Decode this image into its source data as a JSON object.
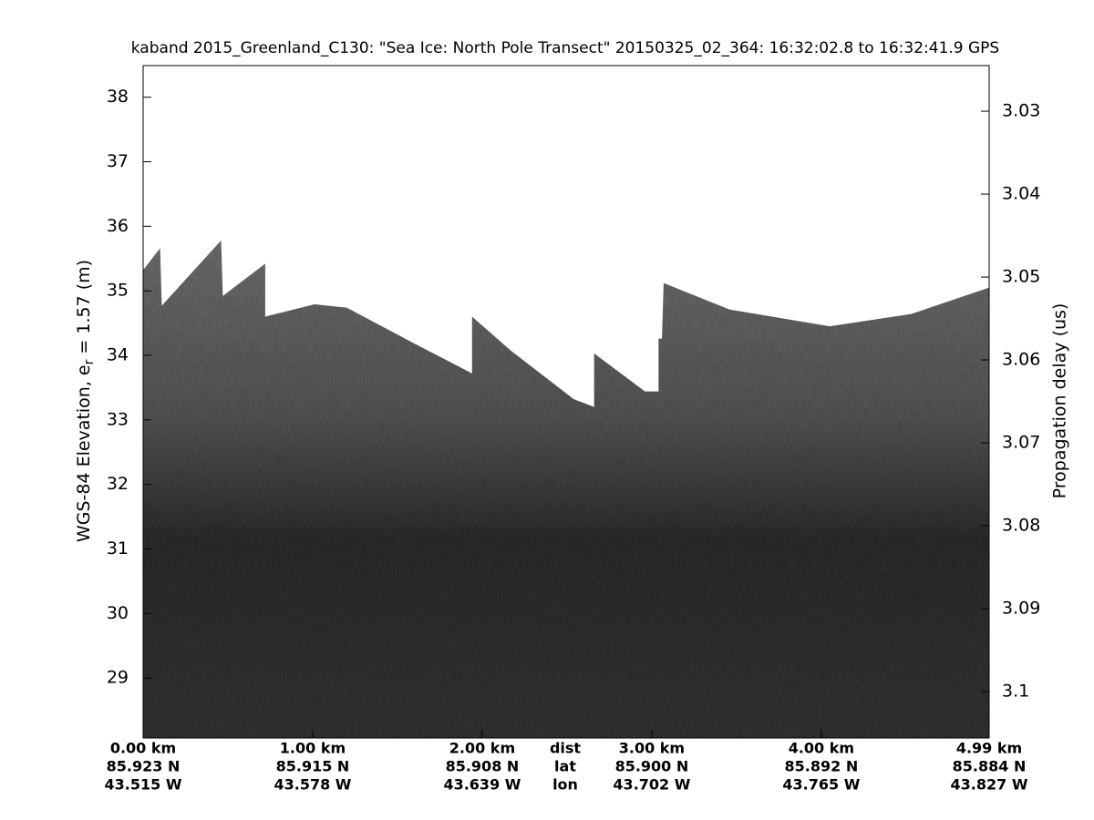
{
  "chart_data": {
    "type": "echogram",
    "title": "kaband 2015_Greenland_C130: \"Sea Ice: North Pole Transect\"  20150325_02_364: 16:32:02.8 to 16:32:41.9 GPS",
    "ylabel": {
      "before": "WGS-84 Elevation, e",
      "sub": "r",
      "after": " = 1.57 (m)"
    },
    "y2label": "Propagation delay (us)",
    "xlim": [
      0,
      4.99
    ],
    "ylim": [
      28.07,
      38.49
    ],
    "y2lim": [
      3.1056,
      3.0245
    ],
    "yticks": [
      29,
      30,
      31,
      32,
      33,
      34,
      35,
      36,
      37,
      38
    ],
    "y2ticks": [
      3.03,
      3.04,
      3.05,
      3.06,
      3.07,
      3.08,
      3.09,
      3.1
    ],
    "xrow_names": [
      "dist",
      "lat",
      "lon"
    ],
    "xticks": [
      {
        "value": 0,
        "label": "0.00 km"
      },
      {
        "value": 1,
        "label": "1.00 km"
      },
      {
        "value": 2,
        "label": "2.00 km"
      },
      {
        "value": 3,
        "label": "3.00 km"
      },
      {
        "value": 4,
        "label": "4.00 km"
      },
      {
        "value": 4.99,
        "label": "4.99 km"
      }
    ],
    "lat_labels": [
      "85.923 N",
      "85.915 N",
      "85.908 N",
      "85.900 N",
      "85.892 N",
      "85.884 N"
    ],
    "lon_labels": [
      "43.515 W",
      "43.578 W",
      "43.639 W",
      "43.702 W",
      "43.765 W",
      "43.827 W"
    ],
    "surface": {
      "x": [
        0,
        0.1,
        0.11,
        0.46,
        0.47,
        0.72,
        0.72,
        1.01,
        1.2,
        1.58,
        1.94,
        1.94,
        2.17,
        2.54,
        2.66,
        2.66,
        2.96,
        3.04,
        3.04,
        3.06,
        3.07,
        3.46,
        4.05,
        4.53,
        4.99
      ],
      "values": [
        35.32,
        35.66,
        34.77,
        35.78,
        34.92,
        35.42,
        34.6,
        34.79,
        34.74,
        34.21,
        33.72,
        34.6,
        34.07,
        33.32,
        33.2,
        34.03,
        33.44,
        33.44,
        34.26,
        34.26,
        35.12,
        34.71,
        34.45,
        34.64,
        35.05
      ]
    }
  }
}
